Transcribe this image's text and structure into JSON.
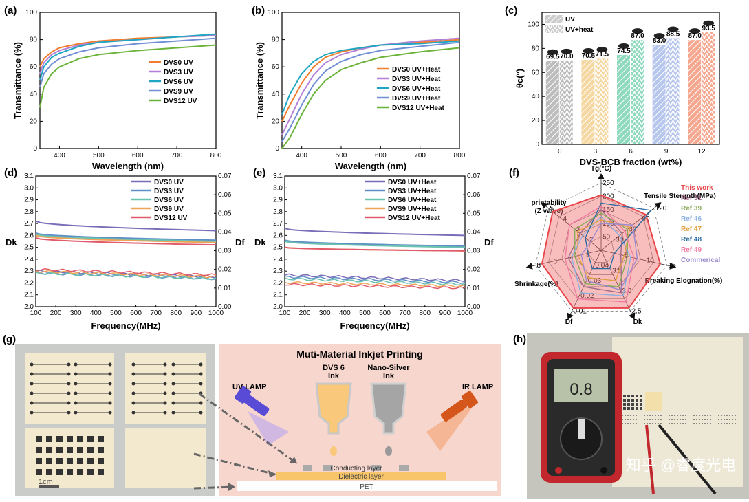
{
  "panels": {
    "a": {
      "label": "(a)"
    },
    "b": {
      "label": "(b)"
    },
    "c": {
      "label": "(c)"
    },
    "d": {
      "label": "(d)"
    },
    "e": {
      "label": "(e)"
    },
    "f": {
      "label": "(f)"
    },
    "g": {
      "label": "(g)"
    },
    "h": {
      "label": "(h)"
    }
  },
  "chart_data": [
    {
      "id": "a",
      "type": "line",
      "xlabel": "Wavelength (nm)",
      "ylabel": "Transmittance (%)",
      "xlim": [
        350,
        800
      ],
      "ylim": [
        0,
        100
      ],
      "xticks": [
        400,
        500,
        600,
        700,
        800
      ],
      "yticks": [
        0,
        20,
        40,
        60,
        80,
        100
      ],
      "series": [
        {
          "name": "DVS0 UV",
          "color": "#f07d2e",
          "x": [
            350,
            360,
            380,
            400,
            450,
            500,
            600,
            700,
            800
          ],
          "values": [
            60,
            66,
            71,
            74,
            77,
            79,
            81,
            82,
            83
          ]
        },
        {
          "name": "DVS3 UV",
          "color": "#b47fd6",
          "x": [
            350,
            360,
            380,
            400,
            450,
            500,
            600,
            700,
            800
          ],
          "values": [
            55,
            63,
            69,
            72,
            76,
            78,
            80,
            82,
            83
          ]
        },
        {
          "name": "DVS6 UV",
          "color": "#1fa6c2",
          "x": [
            350,
            360,
            380,
            400,
            450,
            500,
            600,
            700,
            800
          ],
          "values": [
            50,
            60,
            67,
            70,
            75,
            78,
            80,
            82,
            84
          ]
        },
        {
          "name": "DVS9 UV",
          "color": "#6f8ed6",
          "x": [
            350,
            360,
            380,
            400,
            450,
            500,
            600,
            700,
            800
          ],
          "values": [
            45,
            55,
            62,
            66,
            71,
            74,
            77,
            79,
            81
          ]
        },
        {
          "name": "DVS12 UV",
          "color": "#6cb33a",
          "x": [
            350,
            360,
            380,
            400,
            450,
            500,
            600,
            700,
            800
          ],
          "values": [
            30,
            45,
            55,
            60,
            66,
            69,
            72,
            74,
            76
          ]
        }
      ]
    },
    {
      "id": "b",
      "type": "line",
      "xlabel": "Wavelength (nm)",
      "ylabel": "Transmittance (%)",
      "xlim": [
        350,
        800
      ],
      "ylim": [
        0,
        100
      ],
      "xticks": [
        400,
        500,
        600,
        700,
        800
      ],
      "yticks": [
        0,
        20,
        40,
        60,
        80,
        100
      ],
      "series": [
        {
          "name": "DVS0 UV+Heat",
          "color": "#f07d2e",
          "x": [
            350,
            370,
            400,
            430,
            460,
            500,
            550,
            600,
            700,
            800
          ],
          "values": [
            20,
            32,
            48,
            60,
            67,
            71,
            74,
            76,
            78,
            80
          ]
        },
        {
          "name": "DVS3 UV+Heat",
          "color": "#b47fd6",
          "x": [
            350,
            370,
            400,
            430,
            460,
            500,
            550,
            600,
            700,
            800
          ],
          "values": [
            10,
            22,
            40,
            54,
            63,
            69,
            73,
            76,
            79,
            81
          ]
        },
        {
          "name": "DVS6 UV+Heat",
          "color": "#1fa6c2",
          "x": [
            350,
            370,
            400,
            430,
            460,
            500,
            550,
            600,
            700,
            800
          ],
          "values": [
            25,
            40,
            55,
            64,
            69,
            72,
            74,
            76,
            77,
            79
          ]
        },
        {
          "name": "DVS9 UV+Heat",
          "color": "#6f8ed6",
          "x": [
            350,
            370,
            400,
            430,
            460,
            500,
            550,
            600,
            700,
            800
          ],
          "values": [
            5,
            15,
            32,
            47,
            57,
            64,
            69,
            72,
            75,
            78
          ]
        },
        {
          "name": "DVS12 UV+Heat",
          "color": "#6cb33a",
          "x": [
            350,
            370,
            400,
            430,
            460,
            500,
            550,
            600,
            700,
            800
          ],
          "values": [
            0,
            8,
            25,
            40,
            50,
            58,
            63,
            67,
            71,
            74
          ]
        }
      ]
    },
    {
      "id": "c",
      "type": "bar",
      "xlabel": "DVS-BCB fraction (wt%)",
      "ylabel": "θc(°)",
      "ylim": [
        0,
        110
      ],
      "yticks": [
        0,
        20,
        40,
        60,
        80,
        100
      ],
      "categories": [
        "0",
        "3",
        "6",
        "9",
        "12"
      ],
      "colors": [
        "#bdbdbd",
        "#f5d7a1",
        "#8fd9bf",
        "#b7c6ec",
        "#f5a78f"
      ],
      "series": [
        {
          "name": "UV",
          "values": [
            69.5,
            70.5,
            74.5,
            83.0,
            87.0
          ]
        },
        {
          "name": "UV+heat",
          "values": [
            70.0,
            71.5,
            87.0,
            88.5,
            93.5
          ]
        }
      ],
      "labels": [
        [
          "69.5",
          "70.0"
        ],
        [
          "70.5",
          "71.5"
        ],
        [
          "74.5",
          "87.0"
        ],
        [
          "83.0",
          "88.5"
        ],
        [
          "87.0",
          "93.5"
        ]
      ]
    },
    {
      "id": "d",
      "type": "line",
      "xlabel": "Frequency(MHz)",
      "ylabel_left": "Dk",
      "ylabel_right": "Df",
      "xlim": [
        100,
        1000
      ],
      "ylim": [
        2.0,
        3.1
      ],
      "ylim_right": [
        0,
        0.07
      ],
      "xticks": [
        100,
        200,
        300,
        400,
        500,
        600,
        700,
        800,
        900,
        1000
      ],
      "yticks": [
        "2.0",
        "2.1",
        "2.2",
        "2.3",
        "2.4",
        "2.5",
        "2.6",
        "2.7",
        "2.8",
        "2.9",
        "3.0",
        "3.1"
      ],
      "yticks_right": [
        "0.00",
        "0.01",
        "0.02",
        "0.03",
        "0.04",
        "0.05",
        "0.06",
        "0.07"
      ],
      "series": [
        {
          "name": "DVS0 UV",
          "color": "#7b6cb8",
          "dk": [
            2.72,
            2.64
          ],
          "df": [
            0.019,
            0.016
          ]
        },
        {
          "name": "DVS3 UV",
          "color": "#5f8fc5",
          "dk": [
            2.62,
            2.56
          ],
          "df": [
            0.018,
            0.015
          ]
        },
        {
          "name": "DVS6 UV",
          "color": "#6ac2b0",
          "dk": [
            2.61,
            2.55
          ],
          "df": [
            0.018,
            0.015
          ]
        },
        {
          "name": "DVS9 UV",
          "color": "#f0a45a",
          "dk": [
            2.6,
            2.54
          ],
          "df": [
            0.019,
            0.016
          ]
        },
        {
          "name": "DVS12 UV",
          "color": "#e05a6a",
          "dk": [
            2.58,
            2.52
          ],
          "df": [
            0.02,
            0.017
          ]
        }
      ]
    },
    {
      "id": "e",
      "type": "line",
      "xlabel": "Frequency(MHz)",
      "ylabel_left": "Dk",
      "ylabel_right": "Df",
      "xlim": [
        100,
        1000
      ],
      "ylim": [
        2.0,
        3.1
      ],
      "ylim_right": [
        0,
        0.07
      ],
      "xticks": [
        100,
        200,
        300,
        400,
        500,
        600,
        700,
        800,
        900,
        1000
      ],
      "yticks": [
        "2.0",
        "2.1",
        "2.2",
        "2.3",
        "2.4",
        "2.5",
        "2.6",
        "2.7",
        "2.8",
        "2.9",
        "3.0",
        "3.1"
      ],
      "yticks_right": [
        "0.00",
        "0.01",
        "0.02",
        "0.03",
        "0.04",
        "0.05",
        "0.06",
        "0.07"
      ],
      "series": [
        {
          "name": "DVS0 UV+Heat",
          "color": "#7b6cb8",
          "dk": [
            2.66,
            2.6
          ],
          "df": [
            0.017,
            0.014
          ]
        },
        {
          "name": "DVS3 UV+Heat",
          "color": "#5f8fc5",
          "dk": [
            2.56,
            2.51
          ],
          "df": [
            0.016,
            0.013
          ]
        },
        {
          "name": "DVS6 UV+Heat",
          "color": "#6ac2b0",
          "dk": [
            2.55,
            2.5
          ],
          "df": [
            0.015,
            0.012
          ]
        },
        {
          "name": "DVS9 UV+Heat",
          "color": "#f0a45a",
          "dk": [
            2.5,
            2.47
          ],
          "df": [
            0.013,
            0.011
          ]
        },
        {
          "name": "DVS12 UV+Heat",
          "color": "#e05a6a",
          "dk": [
            2.5,
            2.47
          ],
          "df": [
            0.012,
            0.01
          ]
        }
      ]
    },
    {
      "id": "f",
      "type": "radar",
      "axes": [
        "Tg(°C)",
        "Tensile Stergnth(MPa)",
        "Breaking Elognation(%)",
        "Dk",
        "Df",
        "Shrinkage(%)",
        "printability\n(Z value)"
      ],
      "tick_labels": {
        "tg": [
          "50",
          "100",
          "150",
          "200",
          "250"
        ],
        "tensile": [
          "30",
          "60",
          "90",
          "120"
        ],
        "elong": [
          "5",
          "10",
          "15"
        ],
        "dk": [
          "3.5",
          "3.0",
          "2.5"
        ],
        "df": [
          "0.04",
          "0.03",
          "0.02",
          "0.01"
        ],
        "shrink": [
          "2",
          "4",
          "6",
          "8"
        ],
        "print": [
          "2",
          "3",
          "4",
          "5"
        ]
      },
      "legend": [
        {
          "name": "This work",
          "color": "#e8464a"
        },
        {
          "name": "Ref 31",
          "color": "#a06a8a"
        },
        {
          "name": "Ref 39",
          "color": "#8aab5a"
        },
        {
          "name": "Ref 46",
          "color": "#8ab0e0"
        },
        {
          "name": "Ref 47",
          "color": "#e0a040"
        },
        {
          "name": "Ref 48",
          "color": "#2a6aa0"
        },
        {
          "name": "Ref 49",
          "color": "#f07aa0"
        },
        {
          "name": "Commerical",
          "color": "#9a8ad0"
        }
      ],
      "series": [
        {
          "name": "This work",
          "values": [
            0.82,
            0.85,
            0.9,
            0.95,
            0.95,
            0.9,
            0.92
          ]
        },
        {
          "name": "Ref 31",
          "values": [
            0.6,
            0.4,
            0.3,
            0.7,
            0.6,
            0.5,
            0.4
          ]
        },
        {
          "name": "Ref 39",
          "values": [
            0.55,
            0.5,
            0.4,
            0.6,
            0.55,
            0.4,
            0.5
          ]
        },
        {
          "name": "Ref 46",
          "values": [
            0.5,
            0.35,
            0.45,
            0.75,
            0.7,
            0.45,
            0.35
          ]
        },
        {
          "name": "Ref 47",
          "values": [
            0.45,
            0.55,
            0.35,
            0.5,
            0.45,
            0.35,
            0.45
          ]
        },
        {
          "name": "Ref 48",
          "values": [
            0.7,
            0.95,
            0.2,
            0.3,
            0.3,
            0.2,
            0.3
          ]
        },
        {
          "name": "Ref 49",
          "values": [
            0.65,
            0.45,
            0.5,
            0.85,
            0.8,
            0.55,
            0.6
          ]
        },
        {
          "name": "Commerical",
          "values": [
            0.4,
            0.6,
            0.55,
            0.65,
            0.5,
            0.3,
            0.2
          ]
        }
      ]
    }
  ],
  "panel_g": {
    "title": "Muti-Material Inkjet Printing",
    "uv_lamp": "UV LAMP",
    "ir_lamp": "IR LAMP",
    "ink1": "DVS 6\nInk",
    "ink2": "Nano-Silver\nInk",
    "conducting": "Conducting layer",
    "dielectric": "Dielectric layer",
    "pet": "PET",
    "scale": "1cm"
  },
  "panel_h": {
    "reading": "0.8",
    "watermark": "知乎 @睿度光电"
  }
}
